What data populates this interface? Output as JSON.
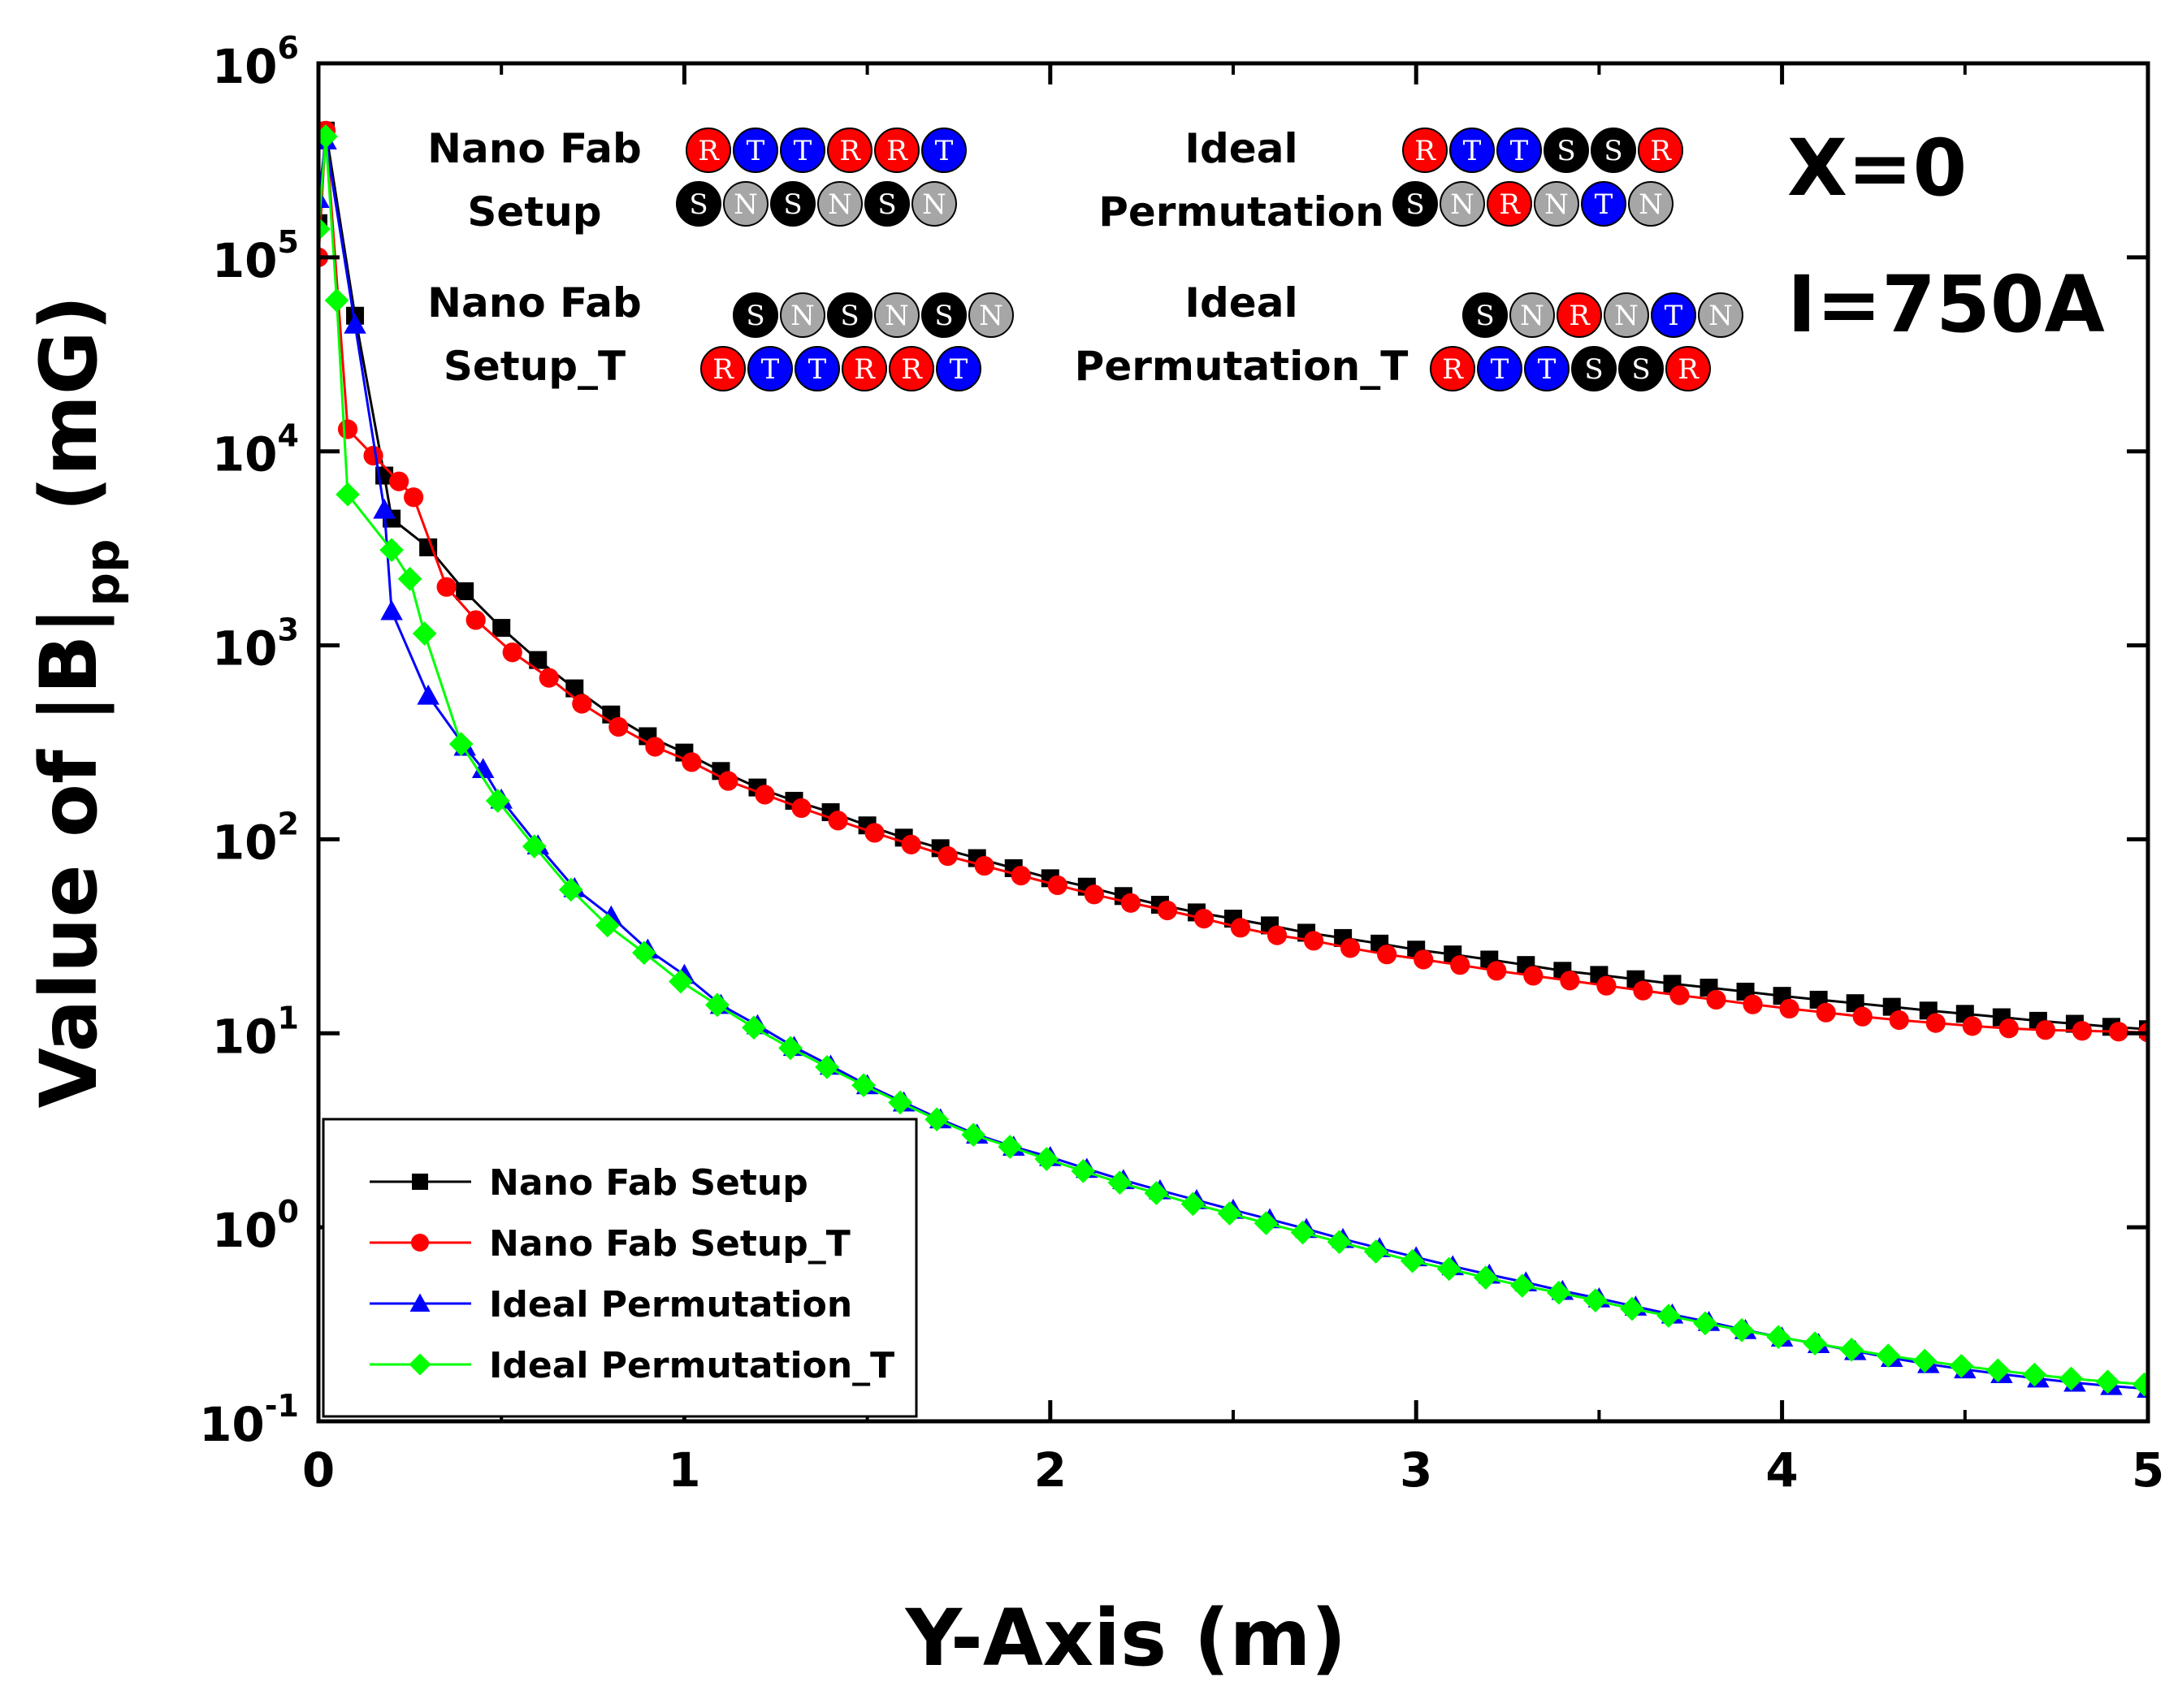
{
  "chart_data": {
    "type": "line",
    "title": "",
    "xlabel": "Y-Axis (m)",
    "ylabel": "Value of |B|pp (mG)",
    "ylabel_parts": {
      "prefix": "Value of |B|",
      "subscript": "pp",
      "suffix": " (mG)"
    },
    "xlim": [
      0,
      5
    ],
    "ylim": [
      0.1,
      1000000
    ],
    "yscale": "log",
    "x_ticks": [
      "0",
      "1",
      "2",
      "3",
      "4",
      "5"
    ],
    "y_ticks": [
      {
        "base": "10",
        "exp": "-1"
      },
      {
        "base": "10",
        "exp": "0"
      },
      {
        "base": "10",
        "exp": "1"
      },
      {
        "base": "10",
        "exp": "2"
      },
      {
        "base": "10",
        "exp": "3"
      },
      {
        "base": "10",
        "exp": "4"
      },
      {
        "base": "10",
        "exp": "5"
      },
      {
        "base": "10",
        "exp": "6"
      }
    ],
    "legend_position": "bottom-left",
    "series": [
      {
        "name": "Nano Fab Setup",
        "color": "#000000",
        "marker": "square",
        "x": [
          0,
          0.02,
          0.1,
          0.18,
          0.2,
          0.3,
          0.4,
          0.5,
          0.6,
          0.7,
          0.8,
          0.9,
          1.0,
          1.1,
          1.2,
          1.3,
          1.4,
          1.5,
          1.6,
          1.7,
          1.8,
          1.9,
          2.0,
          2.1,
          2.2,
          2.3,
          2.4,
          2.5,
          2.6,
          2.7,
          2.8,
          2.9,
          3.0,
          3.1,
          3.2,
          3.3,
          3.4,
          3.5,
          3.6,
          3.7,
          3.8,
          3.9,
          4.0,
          4.1,
          4.2,
          4.3,
          4.4,
          4.5,
          4.6,
          4.7,
          4.8,
          4.9,
          5.0
        ],
        "y": [
          150000,
          450000,
          50000,
          7500,
          4500,
          3200,
          1900,
          1230,
          840,
          600,
          440,
          340,
          280,
          225,
          185,
          158,
          138,
          118,
          102,
          90,
          80,
          71,
          63,
          57,
          51,
          46,
          42,
          39,
          36,
          33,
          31,
          29,
          27,
          25.5,
          24,
          22.5,
          21,
          20,
          19,
          18,
          17.2,
          16.4,
          15.6,
          14.9,
          14.3,
          13.7,
          13.1,
          12.6,
          12.1,
          11.6,
          11.2,
          10.8,
          10.5
        ]
      },
      {
        "name": "Nano Fab Setup_T",
        "color": "#ff0000",
        "marker": "circle",
        "x": [
          0,
          0.02,
          0.08,
          0.15,
          0.22,
          0.26,
          0.35,
          0.43,
          0.53,
          0.63,
          0.72,
          0.82,
          0.92,
          1.02,
          1.12,
          1.22,
          1.32,
          1.42,
          1.52,
          1.62,
          1.72,
          1.82,
          1.92,
          2.02,
          2.12,
          2.22,
          2.32,
          2.42,
          2.52,
          2.62,
          2.72,
          2.82,
          2.92,
          3.02,
          3.12,
          3.22,
          3.32,
          3.42,
          3.52,
          3.62,
          3.72,
          3.82,
          3.92,
          4.02,
          4.12,
          4.22,
          4.32,
          4.42,
          4.52,
          4.62,
          4.72,
          4.82,
          4.92,
          5.0
        ],
        "y": [
          100000,
          450000,
          13000,
          9500,
          7000,
          5800,
          2000,
          1350,
          920,
          680,
          500,
          380,
          300,
          250,
          200,
          170,
          145,
          125,
          108,
          94,
          82,
          73,
          65,
          58,
          52,
          47,
          43,
          39,
          35,
          32,
          30,
          27.5,
          25.5,
          24,
          22.5,
          21,
          19.8,
          18.7,
          17.6,
          16.6,
          15.7,
          14.9,
          14.1,
          13.4,
          12.8,
          12.2,
          11.7,
          11.3,
          10.9,
          10.6,
          10.4,
          10.3,
          10.2,
          10.1
        ]
      },
      {
        "name": "Ideal Permutation",
        "color": "#0000ff",
        "marker": "triangle",
        "x": [
          0,
          0.02,
          0.1,
          0.18,
          0.2,
          0.3,
          0.4,
          0.45,
          0.5,
          0.6,
          0.7,
          0.8,
          0.9,
          1.0,
          1.1,
          1.2,
          1.3,
          1.4,
          1.5,
          1.6,
          1.7,
          1.8,
          1.9,
          2.0,
          2.1,
          2.2,
          2.3,
          2.4,
          2.5,
          2.6,
          2.7,
          2.8,
          2.9,
          3.0,
          3.1,
          3.2,
          3.3,
          3.4,
          3.5,
          3.6,
          3.7,
          3.8,
          3.9,
          4.0,
          4.1,
          4.2,
          4.3,
          4.4,
          4.5,
          4.6,
          4.7,
          4.8,
          4.9,
          5.0
        ],
        "y": [
          200000,
          400000,
          45000,
          5000,
          1500,
          550,
          300,
          230,
          160,
          93,
          56,
          40,
          27,
          20,
          14,
          11,
          8.5,
          6.8,
          5.4,
          4.4,
          3.6,
          3.0,
          2.6,
          2.3,
          2.0,
          1.75,
          1.55,
          1.38,
          1.23,
          1.1,
          0.98,
          0.87,
          0.78,
          0.7,
          0.63,
          0.57,
          0.52,
          0.47,
          0.43,
          0.39,
          0.355,
          0.325,
          0.295,
          0.27,
          0.25,
          0.23,
          0.212,
          0.197,
          0.185,
          0.175,
          0.166,
          0.158,
          0.152,
          0.147
        ]
      },
      {
        "name": "Ideal Permutation_T",
        "color": "#00ff00",
        "marker": "diamond",
        "x": [
          0,
          0.02,
          0.05,
          0.08,
          0.2,
          0.25,
          0.29,
          0.39,
          0.49,
          0.59,
          0.69,
          0.79,
          0.89,
          0.99,
          1.09,
          1.19,
          1.29,
          1.39,
          1.49,
          1.59,
          1.69,
          1.79,
          1.89,
          1.99,
          2.09,
          2.19,
          2.29,
          2.39,
          2.49,
          2.59,
          2.69,
          2.79,
          2.89,
          2.99,
          3.09,
          3.19,
          3.29,
          3.39,
          3.49,
          3.59,
          3.69,
          3.79,
          3.89,
          3.99,
          4.09,
          4.19,
          4.29,
          4.39,
          4.49,
          4.59,
          4.69,
          4.79,
          4.89,
          4.99
        ],
        "y": [
          140000,
          420000,
          60000,
          6000,
          3100,
          2200,
          1150,
          310,
          158,
          92,
          55,
          36,
          26,
          18.5,
          14,
          10.7,
          8.4,
          6.7,
          5.4,
          4.4,
          3.6,
          3.0,
          2.6,
          2.25,
          1.95,
          1.7,
          1.5,
          1.32,
          1.18,
          1.05,
          0.94,
          0.84,
          0.75,
          0.67,
          0.61,
          0.55,
          0.5,
          0.46,
          0.42,
          0.38,
          0.35,
          0.32,
          0.295,
          0.272,
          0.252,
          0.234,
          0.218,
          0.205,
          0.193,
          0.183,
          0.174,
          0.166,
          0.16,
          0.155
        ]
      }
    ],
    "annotations": {
      "x_value": "X=0",
      "current": "I=750A"
    },
    "schematics": [
      {
        "label": [
          "Nano Fab",
          "Setup"
        ],
        "rows": [
          [
            "R",
            "T",
            "T",
            "R",
            "R",
            "T"
          ],
          [
            "S",
            "N",
            "S",
            "N",
            "S",
            "N"
          ]
        ]
      },
      {
        "label": [
          "Ideal",
          "Permutation"
        ],
        "rows": [
          [
            "R",
            "T",
            "T",
            "S",
            "S",
            "R"
          ],
          [
            "S",
            "N",
            "R",
            "N",
            "T",
            "N"
          ]
        ]
      },
      {
        "label": [
          "Nano Fab",
          "Setup_T"
        ],
        "rows": [
          [
            "S",
            "N",
            "S",
            "N",
            "S",
            "N"
          ],
          [
            "R",
            "T",
            "T",
            "R",
            "R",
            "T"
          ]
        ]
      },
      {
        "label": [
          "Ideal",
          "Permutation_T"
        ],
        "rows": [
          [
            "S",
            "N",
            "R",
            "N",
            "T",
            "N"
          ],
          [
            "R",
            "T",
            "T",
            "S",
            "S",
            "R"
          ]
        ]
      }
    ],
    "ball_colors": {
      "R": "#ff0000",
      "T": "#0000ff",
      "S": "#000000",
      "N": "#a6a6a6"
    }
  }
}
